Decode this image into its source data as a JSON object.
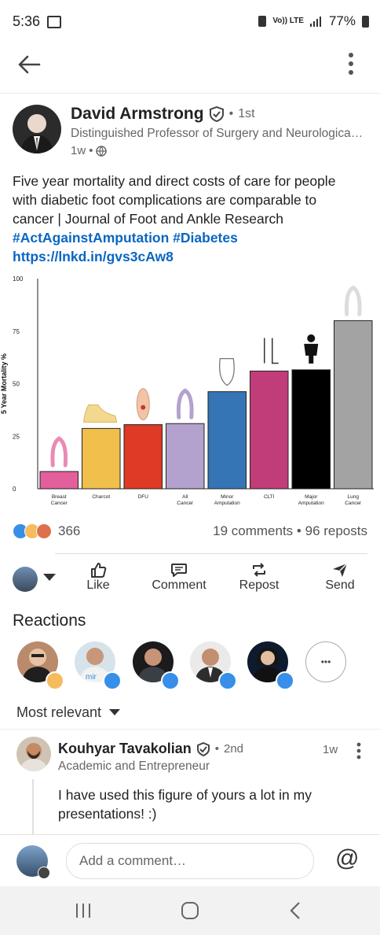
{
  "status": {
    "time": "5:36",
    "signal_text": "Vo)) LTE",
    "battery": "77%"
  },
  "post": {
    "author": {
      "name": "David Armstrong",
      "degree": "1st",
      "headline": "Distinguished Professor of Surgery and Neurologica…",
      "time": "1w"
    },
    "text_lines": [
      "Five year mortality and direct costs of care for people",
      "with diabetic foot complications are comparable to",
      "cancer | Journal of Foot and Ankle Research"
    ],
    "hashtags": "#ActAgainstAmputation #Diabetes",
    "link": "https://lnkd.in/gvs3cAw8"
  },
  "chart_data": {
    "type": "bar",
    "ylabel": "5 Year Mortality %",
    "ylim": [
      0,
      100
    ],
    "yticks": [
      "100",
      "75",
      "50",
      "25",
      "0"
    ],
    "categories": [
      "Breast Cancer",
      "Charcot",
      "DFU",
      "All Cancer",
      "Minor Amputation",
      "CLTI",
      "Major Amputation",
      "Lung Cancer"
    ],
    "values": [
      8.2,
      28.7,
      30.5,
      31.0,
      46.2,
      56.0,
      56.6,
      80.0
    ],
    "colors": [
      "#e35f9b",
      "#f0bf4c",
      "#de3a25",
      "#b3a2cd",
      "#3575b5",
      "#c13d7a",
      "#000000",
      "#a3a3a3"
    ]
  },
  "social": {
    "reaction_count": "366",
    "comments": "19 comments",
    "reposts": "96 reposts"
  },
  "actions": {
    "like": "Like",
    "comment": "Comment",
    "repost": "Repost",
    "send": "Send"
  },
  "reactions": {
    "title": "Reactions",
    "more": "•••"
  },
  "comments": {
    "sort": "Most relevant",
    "items": [
      {
        "name": "Kouhyar Tavakolian",
        "degree": "2nd",
        "headline": "Academic and Entrepreneur",
        "time": "1w",
        "text_lines": [
          "I have used this figure of yours a lot in my",
          "presentations! :)"
        ]
      }
    ]
  },
  "composer": {
    "placeholder": "Add a comment…",
    "mention": "@"
  }
}
